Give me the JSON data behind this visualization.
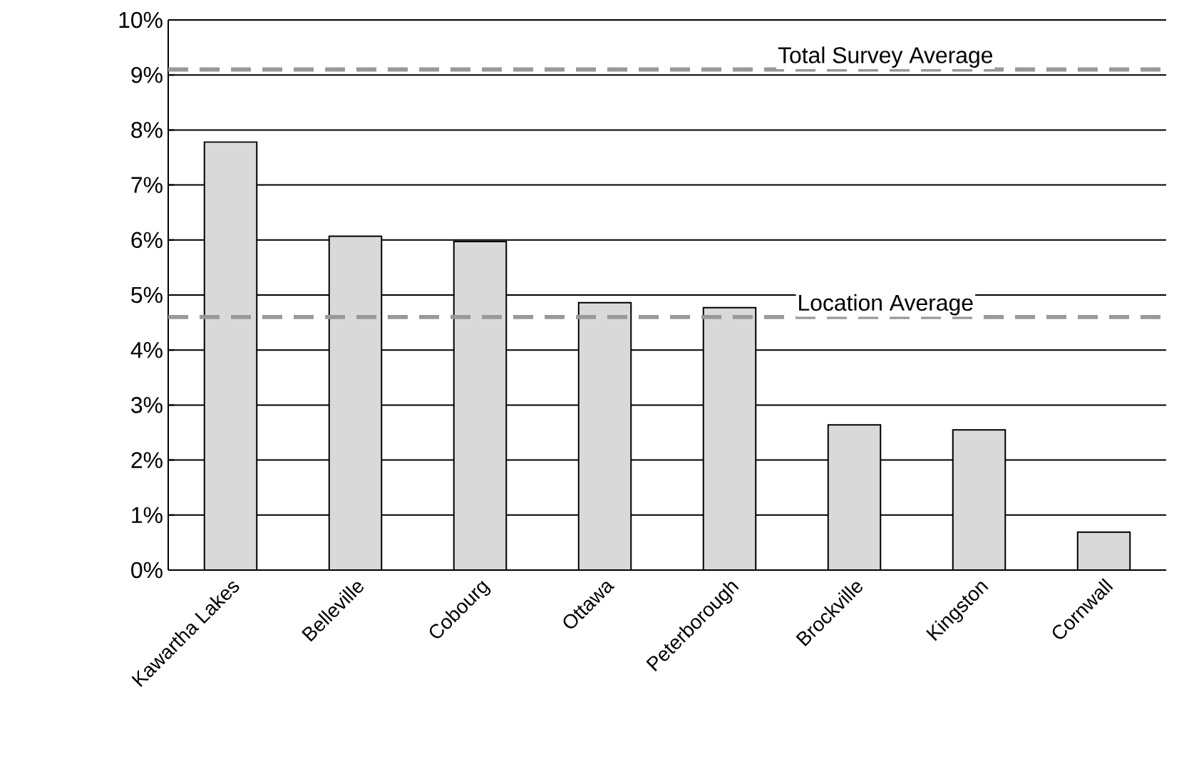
{
  "chart_data": {
    "type": "bar",
    "categories": [
      "Kawartha Lakes",
      "Belleville",
      "Cobourg",
      "Ottawa",
      "Peterborough",
      "Brockville",
      "Kingston",
      "Cornwall"
    ],
    "values": [
      7.78,
      6.07,
      5.97,
      4.86,
      4.77,
      2.64,
      2.55,
      0.69
    ],
    "color": "#d9d9d9",
    "ylim": [
      0,
      10
    ],
    "yticks": [
      {
        "value": 0,
        "label": "0%"
      },
      {
        "value": 1,
        "label": "1%"
      },
      {
        "value": 2,
        "label": "2%"
      },
      {
        "value": 3,
        "label": "3%"
      },
      {
        "value": 4,
        "label": "4%"
      },
      {
        "value": 5,
        "label": "5%"
      },
      {
        "value": 6,
        "label": "6%"
      },
      {
        "value": 7,
        "label": "7%"
      },
      {
        "value": 8,
        "label": "8%"
      },
      {
        "value": 9,
        "label": "9%"
      },
      {
        "value": 10,
        "label": "10%"
      }
    ],
    "grid": "y",
    "ref_lines": [
      {
        "axis": "y",
        "value": 9.1,
        "label": "Total Survey Average",
        "color": "#999999",
        "line_style": "dashed"
      },
      {
        "axis": "y",
        "value": 4.6,
        "label": "Location Average",
        "color": "#999999",
        "line_style": "dashed"
      }
    ]
  }
}
